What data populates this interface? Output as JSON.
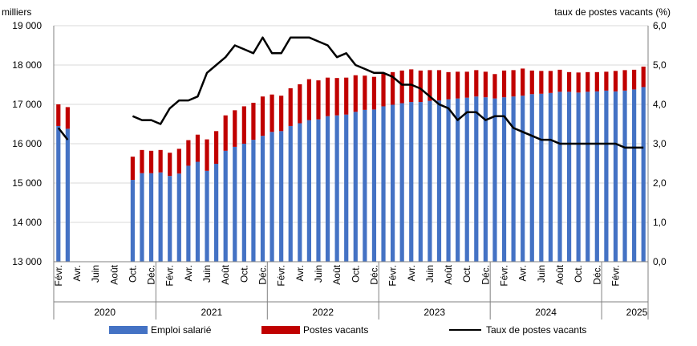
{
  "chart_data": {
    "type": "bar+line",
    "left_axis_label": "milliers",
    "right_axis_label": "taux de postes vacants (%)",
    "left_ylim": [
      13000,
      19000
    ],
    "right_ylim": [
      0.0,
      6.0
    ],
    "left_ticks": [
      "13 000",
      "14 000",
      "15 000",
      "16 000",
      "17 000",
      "18 000",
      "19 000"
    ],
    "right_ticks": [
      "0,0",
      "1,0",
      "2,0",
      "3,0",
      "4,0",
      "5,0",
      "6,0"
    ],
    "month_labels": [
      "Févr.",
      "Avr.",
      "Juin",
      "Août",
      "Oct.",
      "Déc.",
      "Févr.",
      "Avr.",
      "Juin",
      "Août",
      "Oct.",
      "Déc.",
      "Févr.",
      "Avr.",
      "Juin",
      "Août",
      "Oct.",
      "Déc.",
      "Févr.",
      "Avr.",
      "Juin",
      "Août",
      "Oct.",
      "Déc.",
      "Févr.",
      "Avr.",
      "Juin",
      "Août",
      "Oct.",
      "Déc.",
      "Févr."
    ],
    "years": [
      "2020",
      "2021",
      "2022",
      "2023",
      "2024",
      "2025"
    ],
    "colors": {
      "employment": "#4472c4",
      "vacancies": "#c00000",
      "rate": "#000000"
    },
    "series": [
      {
        "name": "Emploi salarié",
        "kind": "bar",
        "values": [
          16450,
          16380,
          null,
          null,
          null,
          null,
          null,
          null,
          15080,
          15250,
          15250,
          15270,
          15180,
          15240,
          15440,
          15540,
          15310,
          15490,
          15820,
          15920,
          16000,
          16100,
          16200,
          16300,
          16320,
          16450,
          16520,
          16600,
          16620,
          16700,
          16720,
          16740,
          16810,
          16860,
          16870,
          16950,
          16990,
          17030,
          17060,
          17060,
          17090,
          17100,
          17130,
          17150,
          17170,
          17200,
          17180,
          17150,
          17180,
          17200,
          17220,
          17260,
          17270,
          17290,
          17320,
          17320,
          17300,
          17320,
          17330,
          17350,
          17330,
          17350,
          17380,
          17440
        ]
      },
      {
        "name": "Postes vacants",
        "kind": "bar",
        "values": [
          550,
          550,
          null,
          null,
          null,
          null,
          null,
          null,
          590,
          590,
          570,
          570,
          590,
          630,
          650,
          690,
          800,
          830,
          900,
          930,
          950,
          940,
          1000,
          950,
          900,
          960,
          990,
          1040,
          990,
          980,
          950,
          940,
          930,
          870,
          830,
          850,
          830,
          830,
          830,
          800,
          780,
          770,
          690,
          680,
          660,
          670,
          650,
          620,
          680,
          670,
          690,
          600,
          580,
          560,
          560,
          500,
          510,
          500,
          490,
          480,
          520,
          520,
          500,
          520
        ]
      },
      {
        "name": "Taux de postes vacants",
        "kind": "line",
        "axis": "right",
        "values": [
          3.4,
          3.1,
          null,
          null,
          null,
          null,
          null,
          null,
          3.7,
          3.6,
          3.6,
          3.5,
          3.9,
          4.1,
          4.1,
          4.2,
          4.8,
          5.0,
          5.2,
          5.5,
          5.4,
          5.3,
          5.7,
          5.3,
          5.3,
          5.7,
          5.7,
          5.7,
          5.6,
          5.5,
          5.2,
          5.3,
          5.0,
          4.9,
          4.8,
          4.8,
          4.7,
          4.5,
          4.5,
          4.4,
          4.2,
          4.0,
          3.9,
          3.6,
          3.8,
          3.8,
          3.6,
          3.7,
          3.7,
          3.4,
          3.3,
          3.2,
          3.1,
          3.1,
          3.0,
          3.0,
          3.0,
          3.0,
          3.0,
          3.0,
          3.0,
          2.9,
          2.9,
          2.9
        ]
      }
    ]
  },
  "legend": {
    "employment": "Emploi salarié",
    "vacancies": "Postes vacants",
    "rate": "Taux de postes vacants"
  }
}
